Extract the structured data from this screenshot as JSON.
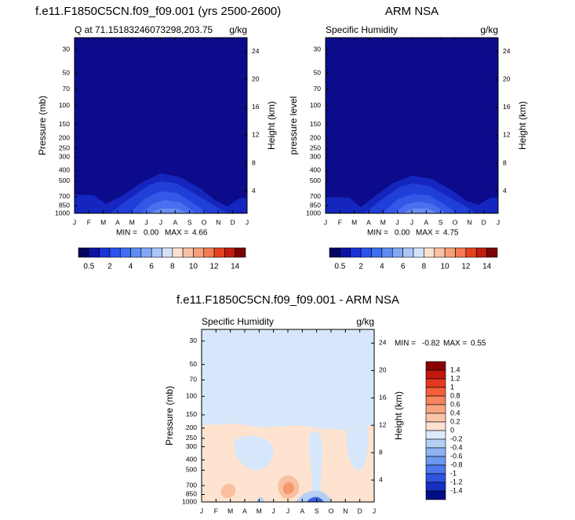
{
  "chart_data": [
    {
      "type": "contour",
      "title": "f.e11.F1850C5CN.f09_f09.001 (yrs 2500-2600)",
      "subtitle": "Q at 71.15183246073298,203.75",
      "units": "g/kg",
      "ylabel": "Pressure (mb)",
      "y2label": "Height (km)",
      "categories": [
        "J",
        "F",
        "M",
        "A",
        "M",
        "J",
        "J",
        "A",
        "S",
        "O",
        "N",
        "D",
        "J"
      ],
      "yscale": "log",
      "ylim": [
        1000,
        23.3
      ],
      "yticks": [
        30,
        50,
        70,
        100,
        150,
        200,
        250,
        300,
        400,
        500,
        700,
        850,
        1000
      ],
      "y2lim": [
        0.8,
        26
      ],
      "y2ticks": [
        24,
        20,
        16,
        12,
        8,
        4
      ],
      "stats": {
        "min_label": "MIN =",
        "min": {
          "value": 0,
          "label": "0.00"
        },
        "max_label": "MAX =",
        "max": 4.66
      },
      "colorbar": {
        "orientation": "horizontal",
        "colors": [
          "#03055e",
          "#0d14a4",
          "#1a33d8",
          "#2c52ef",
          "#3f6ff0",
          "#5e8cf3",
          "#82a9f6",
          "#abc6f9",
          "#d4e3fc",
          "#fbe1d2",
          "#f9c2a5",
          "#f6a07a",
          "#f37a52",
          "#e5431f",
          "#c01d0e",
          "#7a0404"
        ],
        "ticks": [
          0.5,
          2,
          4,
          6,
          8,
          10,
          12,
          14
        ]
      }
    },
    {
      "type": "contour",
      "title": "ARM NSA",
      "subtitle": "Specific Humidity",
      "units": "g/kg",
      "ylabel": "pressure level",
      "y2label": "Height (km)",
      "categories": [
        "J",
        "F",
        "M",
        "A",
        "M",
        "J",
        "J",
        "A",
        "S",
        "O",
        "N",
        "D",
        "J"
      ],
      "yscale": "log",
      "ylim": [
        1000,
        23.3
      ],
      "yticks": [
        30,
        50,
        70,
        100,
        150,
        200,
        250,
        300,
        400,
        500,
        700,
        850,
        1000
      ],
      "y2lim": [
        0.8,
        26
      ],
      "y2ticks": [
        24,
        20,
        16,
        12,
        8,
        4
      ],
      "stats": {
        "min_label": "MIN =",
        "min": {
          "value": 0,
          "label": "0.00"
        },
        "max_label": "MAX =",
        "max": 4.75
      },
      "colorbar": {
        "orientation": "horizontal",
        "colors": [
          "#03055e",
          "#0d14a4",
          "#1a33d8",
          "#2c52ef",
          "#3f6ff0",
          "#5e8cf3",
          "#82a9f6",
          "#abc6f9",
          "#d4e3fc",
          "#fbe1d2",
          "#f9c2a5",
          "#f6a07a",
          "#f37a52",
          "#e5431f",
          "#c01d0e",
          "#7a0404"
        ],
        "ticks": [
          0.5,
          2,
          4,
          6,
          8,
          10,
          12,
          14
        ]
      }
    },
    {
      "type": "contour",
      "title": "f.e11.F1850C5CN.f09_f09.001 - ARM NSA",
      "subtitle": "Specific Humidity",
      "units": "g/kg",
      "ylabel": "Pressure (mb)",
      "y2label": "Height (km)",
      "categories": [
        "J",
        "F",
        "M",
        "A",
        "M",
        "J",
        "J",
        "A",
        "S",
        "O",
        "N",
        "D",
        "J"
      ],
      "yscale": "log",
      "ylim": [
        1000,
        23.3
      ],
      "yticks": [
        30,
        50,
        70,
        100,
        150,
        200,
        250,
        300,
        400,
        500,
        700,
        850,
        1000
      ],
      "y2lim": [
        0.8,
        26
      ],
      "y2ticks": [
        24,
        20,
        16,
        12,
        8,
        4
      ],
      "stats": {
        "min_label": "MIN =",
        "min": -0.82,
        "max_label": "MAX =",
        "max": 0.55
      },
      "colorbar": {
        "orientation": "vertical",
        "colors": [
          "#8b0000",
          "#c0170e",
          "#e2391f",
          "#f3603a",
          "#f6845c",
          "#f8a582",
          "#fbc4a8",
          "#fde2d0",
          "#dcebfb",
          "#b5cff6",
          "#8fb2f2",
          "#6e97ef",
          "#4d77ea",
          "#2f54e0",
          "#1531c2",
          "#000e86"
        ],
        "ticks": [
          1.4,
          1.2,
          1,
          0.8,
          0.6,
          0.4,
          0.2,
          0,
          -0.2,
          -0.4,
          -0.6,
          -0.8,
          -1,
          -1.2,
          -1.4
        ]
      }
    }
  ]
}
